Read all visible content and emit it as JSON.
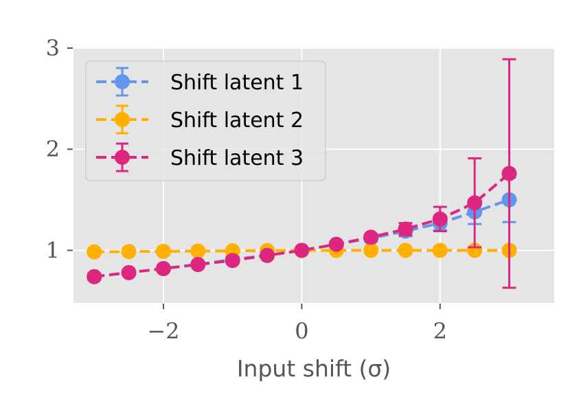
{
  "chart_data": {
    "type": "line",
    "title": "",
    "xlabel": "Input shift (σ)",
    "ylabel": "",
    "xlim": [
      -3.3,
      3.65
    ],
    "ylim": [
      0.48,
      3.0
    ],
    "xticks": [
      -2,
      0,
      2
    ],
    "xtick_labels": [
      "−2",
      "0",
      "2"
    ],
    "yticks": [
      1,
      2,
      3
    ],
    "ytick_labels": [
      "1",
      "2",
      "3"
    ],
    "grid": true,
    "legend_placement": "upper-left",
    "x": [
      -3,
      -2.5,
      -2,
      -1.5,
      -1,
      -0.5,
      0,
      0.5,
      1,
      1.5,
      2,
      2.5,
      3
    ],
    "series": [
      {
        "name": "Shift latent 1",
        "color": "#6495ed",
        "values": [
          0.74,
          0.78,
          0.82,
          0.86,
          0.91,
          0.95,
          1.0,
          1.06,
          1.12,
          1.19,
          1.27,
          1.38,
          1.5
        ],
        "errors": [
          0.02,
          0.02,
          0.02,
          0.02,
          0.02,
          0.02,
          0.0,
          0.02,
          0.03,
          0.05,
          0.07,
          0.12,
          0.22
        ]
      },
      {
        "name": "Shift latent 2",
        "color": "#ffb000",
        "values": [
          0.985,
          0.988,
          0.99,
          0.993,
          0.995,
          0.998,
          1.0,
          1.0,
          1.0,
          1.0,
          1.0,
          1.0,
          1.0
        ],
        "errors": [
          0.01,
          0.01,
          0.01,
          0.01,
          0.01,
          0.01,
          0.0,
          0.005,
          0.005,
          0.005,
          0.005,
          0.005,
          0.005
        ]
      },
      {
        "name": "Shift latent 3",
        "color": "#dc267f",
        "values": [
          0.74,
          0.78,
          0.82,
          0.86,
          0.9,
          0.95,
          1.0,
          1.06,
          1.13,
          1.21,
          1.31,
          1.47,
          1.76
        ],
        "errors": [
          0.03,
          0.02,
          0.02,
          0.02,
          0.02,
          0.02,
          0.0,
          0.02,
          0.03,
          0.06,
          0.12,
          0.44,
          1.13
        ]
      }
    ]
  }
}
